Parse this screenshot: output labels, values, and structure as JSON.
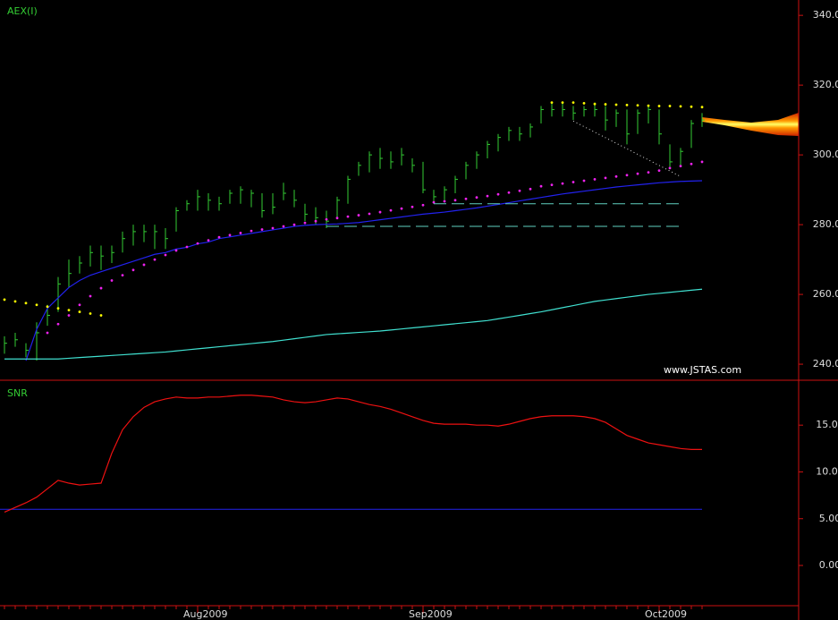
{
  "chart_data": [
    {
      "type": "ohlc",
      "title": "AEX(I)",
      "watermark": "www.JSTAS.com",
      "categories": [
        null,
        null,
        null,
        null,
        null,
        null,
        null,
        null,
        null,
        null,
        null,
        null,
        null,
        null,
        null,
        null,
        null,
        null,
        "Aug2009",
        null,
        null,
        null,
        null,
        null,
        null,
        null,
        null,
        null,
        null,
        null,
        null,
        null,
        null,
        null,
        null,
        null,
        null,
        null,
        null,
        "Sep2009",
        null,
        null,
        null,
        null,
        null,
        null,
        null,
        null,
        null,
        null,
        null,
        null,
        null,
        null,
        null,
        null,
        null,
        null,
        null,
        null,
        null,
        "Oct2009",
        null,
        null,
        null,
        null
      ],
      "high": [
        248,
        249,
        246,
        252,
        257,
        265,
        270,
        271,
        274,
        274,
        274,
        278,
        280,
        280,
        280,
        279,
        285,
        287,
        290,
        289,
        288,
        290,
        291,
        290,
        289,
        289,
        292,
        290,
        286,
        285,
        284,
        288,
        294,
        298,
        301,
        302,
        301,
        302,
        299,
        298,
        290,
        291,
        294,
        298,
        301,
        304,
        306,
        308,
        308,
        309,
        314,
        315,
        315,
        314,
        314,
        315,
        314,
        313,
        313,
        313,
        314,
        313,
        303,
        302,
        310,
        312
      ],
      "low": [
        243,
        245,
        242,
        241,
        251,
        255,
        262,
        266,
        268,
        267,
        269,
        272,
        274,
        275,
        273,
        273,
        278,
        284,
        284,
        284,
        284,
        286,
        286,
        285,
        282,
        283,
        287,
        285,
        281,
        280,
        279,
        282,
        286,
        294,
        295,
        296,
        296,
        297,
        295,
        289,
        286,
        287,
        289,
        293,
        296,
        299,
        301,
        304,
        304,
        305,
        309,
        311,
        311,
        310,
        311,
        311,
        307,
        308,
        303,
        306,
        309,
        303,
        296,
        297,
        302,
        308
      ],
      "close": [
        246,
        247,
        244,
        249,
        254,
        263,
        266,
        269,
        272,
        271,
        272,
        276,
        278,
        278,
        278,
        276,
        284,
        286,
        288,
        287,
        286,
        289,
        290,
        289,
        284,
        285,
        289,
        287,
        283,
        282,
        281,
        287,
        293,
        297,
        300,
        299,
        298,
        300,
        297,
        290,
        288,
        290,
        293,
        297,
        300,
        303,
        305,
        307,
        306,
        308,
        313,
        313,
        313,
        312,
        313,
        313,
        310,
        312,
        306,
        312,
        313,
        306,
        298,
        301,
        309,
        310
      ],
      "bar_color": "#33cc33",
      "lines": [
        {
          "color": "#2222ee",
          "values": [
            null,
            null,
            241,
            250,
            256,
            259,
            262,
            264,
            265.5,
            266.5,
            267.5,
            268.5,
            269.5,
            270.5,
            271.5,
            272,
            273,
            273.5,
            274.5,
            275,
            276,
            276.5,
            277,
            277.5,
            278,
            278.5,
            279,
            279.5,
            279.8,
            280,
            280.1,
            280.2,
            280.4,
            280.6,
            281,
            281.4,
            281.8,
            282.2,
            282.6,
            283,
            283.3,
            283.6,
            284,
            284.4,
            284.8,
            285.3,
            285.8,
            286.3,
            286.8,
            287.3,
            287.8,
            288.3,
            288.8,
            289.2,
            289.6,
            290,
            290.4,
            290.8,
            291.1,
            291.4,
            291.7,
            292,
            292.2,
            292.4,
            292.5,
            292.6
          ]
        },
        {
          "color": "#40e0d0",
          "values": [
            241.5,
            241.5,
            241.5,
            241.5,
            241.5,
            241.5,
            241.7,
            241.9,
            242.1,
            242.3,
            242.5,
            242.7,
            242.9,
            243.1,
            243.3,
            243.5,
            243.8,
            244.1,
            244.4,
            244.7,
            245,
            245.3,
            245.6,
            245.9,
            246.2,
            246.5,
            246.9,
            247.3,
            247.7,
            248.1,
            248.5,
            248.7,
            248.9,
            249.1,
            249.3,
            249.5,
            249.8,
            250.1,
            250.4,
            250.7,
            251,
            251.3,
            251.6,
            251.9,
            252.2,
            252.5,
            253,
            253.5,
            254,
            254.5,
            255,
            255.6,
            256.2,
            256.8,
            257.4,
            258,
            258.4,
            258.8,
            259.2,
            259.6,
            260,
            260.3,
            260.6,
            260.9,
            261.2,
            261.5
          ]
        }
      ],
      "dots": [
        {
          "color": "#ee22ee",
          "values": [
            null,
            null,
            null,
            null,
            249,
            251.5,
            254,
            257,
            259.5,
            261.8,
            264,
            265.5,
            267,
            268.5,
            270,
            271.3,
            272.6,
            273.6,
            274.6,
            275.5,
            276.4,
            277,
            277.6,
            278.2,
            278.6,
            279,
            279.5,
            280,
            280.5,
            281,
            281.5,
            281.9,
            282.3,
            282.7,
            283.1,
            283.6,
            284.1,
            284.6,
            285.1,
            285.6,
            286.4,
            286.7,
            287,
            287.4,
            287.8,
            288.2,
            288.7,
            289.2,
            289.7,
            290.2,
            291,
            291.4,
            291.8,
            292.2,
            292.6,
            293,
            293.4,
            293.8,
            294.2,
            294.6,
            295,
            295.5,
            296.2,
            296.8,
            297.4,
            298
          ]
        },
        {
          "color": "#ffff00",
          "values": [
            258.5,
            258,
            257.5,
            257,
            256.5,
            256,
            255.5,
            255,
            254.5,
            254,
            null,
            null,
            null,
            null,
            null,
            null,
            null,
            null,
            null,
            null,
            null,
            null,
            null,
            null,
            null,
            null,
            null,
            null,
            null,
            null,
            null,
            null,
            null,
            null,
            null,
            null,
            null,
            null,
            null,
            null,
            null,
            null,
            null,
            null,
            null,
            null,
            null,
            null,
            null,
            null,
            null,
            315,
            315,
            315,
            314.8,
            314.6,
            314.5,
            314.4,
            314.3,
            314.2,
            314.1,
            314,
            314,
            313.9,
            313.8,
            313.7
          ]
        }
      ],
      "levels": [
        {
          "value": 286,
          "x": [
            40,
            63
          ]
        },
        {
          "value": 279.5,
          "x": [
            30,
            63
          ]
        }
      ],
      "level_color": "#5fcfc0",
      "trendline": {
        "x": [
          53,
          63
        ],
        "values": [
          309.7,
          293.8
        ]
      },
      "ylim": [
        235.4,
        344.4
      ],
      "yticks": [
        {
          "value": 240,
          "label": "240.00"
        },
        {
          "value": 260,
          "label": "260.00"
        },
        {
          "value": 280,
          "label": "280.00"
        },
        {
          "value": 300,
          "label": "300.00"
        },
        {
          "value": 320,
          "label": "320.00"
        },
        {
          "value": 340,
          "label": "340.00"
        }
      ]
    },
    {
      "type": "line",
      "title": "SNR",
      "color": "#ee1111",
      "values": [
        5.7,
        6.2,
        6.7,
        7.3,
        8.2,
        9.1,
        8.8,
        8.6,
        8.7,
        8.8,
        12.0,
        14.5,
        15.9,
        16.9,
        17.5,
        17.8,
        18.0,
        17.9,
        17.9,
        18.0,
        18.0,
        18.1,
        18.2,
        18.2,
        18.1,
        18.0,
        17.7,
        17.5,
        17.4,
        17.5,
        17.7,
        17.9,
        17.8,
        17.5,
        17.2,
        17.0,
        16.7,
        16.3,
        15.9,
        15.5,
        15.2,
        15.1,
        15.1,
        15.1,
        15.0,
        15.0,
        14.9,
        15.1,
        15.4,
        15.7,
        15.9,
        16.0,
        16.0,
        16.0,
        15.9,
        15.7,
        15.3,
        14.6,
        13.9,
        13.5,
        13.1,
        12.9,
        12.7,
        12.5,
        12.4,
        12.4
      ],
      "threshold": 6,
      "threshold_color": "#2222ee",
      "ylim": [
        -4.3,
        19.8
      ],
      "yticks": [
        {
          "value": 0,
          "label": "0.00"
        },
        {
          "value": 5,
          "label": "5.00"
        },
        {
          "value": 10,
          "label": "10.00"
        },
        {
          "value": 15,
          "label": "15.00"
        }
      ]
    }
  ]
}
